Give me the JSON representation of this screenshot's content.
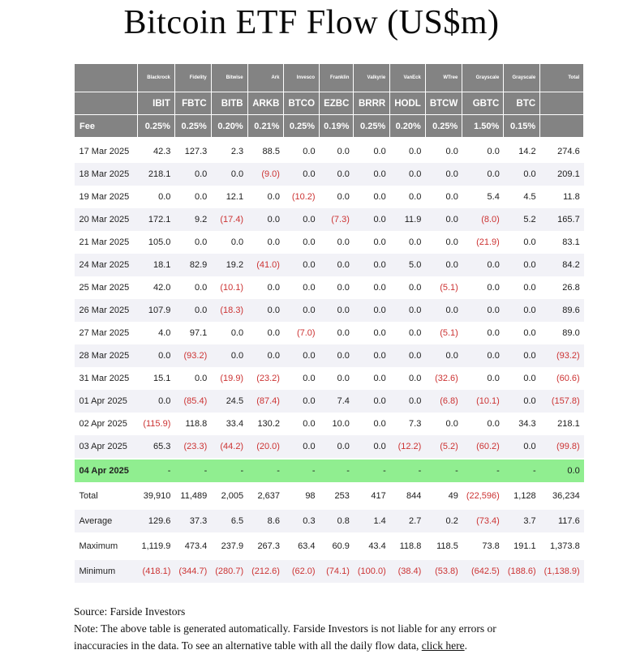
{
  "chart_data": {
    "type": "table",
    "title": "Bitcoin ETF Flow (US$m)",
    "total_label": "Total",
    "fee_label": "Fee",
    "issuers": [
      "Blackrock",
      "Fidelity",
      "Bitwise",
      "Ark",
      "Invesco",
      "Franklin",
      "Valkyrie",
      "VanEck",
      "WTree",
      "Grayscale",
      "Grayscale"
    ],
    "tickers": [
      "IBIT",
      "FBTC",
      "BITB",
      "ARKB",
      "BTCO",
      "EZBC",
      "BRRR",
      "HODL",
      "BTCW",
      "GBTC",
      "BTC"
    ],
    "fees": [
      "0.25%",
      "0.25%",
      "0.20%",
      "0.21%",
      "0.25%",
      "0.19%",
      "0.25%",
      "0.20%",
      "0.25%",
      "1.50%",
      "0.15%"
    ],
    "rows": [
      {
        "date": "17 Mar 2025",
        "values": [
          "42.3",
          "127.3",
          "2.3",
          "88.5",
          "0.0",
          "0.0",
          "0.0",
          "0.0",
          "0.0",
          "0.0",
          "14.2"
        ],
        "total": "274.6"
      },
      {
        "date": "18 Mar 2025",
        "values": [
          "218.1",
          "0.0",
          "0.0",
          "(9.0)",
          "0.0",
          "0.0",
          "0.0",
          "0.0",
          "0.0",
          "0.0",
          "0.0"
        ],
        "total": "209.1"
      },
      {
        "date": "19 Mar 2025",
        "values": [
          "0.0",
          "0.0",
          "12.1",
          "0.0",
          "(10.2)",
          "0.0",
          "0.0",
          "0.0",
          "0.0",
          "5.4",
          "4.5"
        ],
        "total": "11.8"
      },
      {
        "date": "20 Mar 2025",
        "values": [
          "172.1",
          "9.2",
          "(17.4)",
          "0.0",
          "0.0",
          "(7.3)",
          "0.0",
          "11.9",
          "0.0",
          "(8.0)",
          "5.2"
        ],
        "total": "165.7"
      },
      {
        "date": "21 Mar 2025",
        "values": [
          "105.0",
          "0.0",
          "0.0",
          "0.0",
          "0.0",
          "0.0",
          "0.0",
          "0.0",
          "0.0",
          "(21.9)",
          "0.0"
        ],
        "total": "83.1"
      },
      {
        "date": "24 Mar 2025",
        "values": [
          "18.1",
          "82.9",
          "19.2",
          "(41.0)",
          "0.0",
          "0.0",
          "0.0",
          "5.0",
          "0.0",
          "0.0",
          "0.0"
        ],
        "total": "84.2"
      },
      {
        "date": "25 Mar 2025",
        "values": [
          "42.0",
          "0.0",
          "(10.1)",
          "0.0",
          "0.0",
          "0.0",
          "0.0",
          "0.0",
          "(5.1)",
          "0.0",
          "0.0"
        ],
        "total": "26.8"
      },
      {
        "date": "26 Mar 2025",
        "values": [
          "107.9",
          "0.0",
          "(18.3)",
          "0.0",
          "0.0",
          "0.0",
          "0.0",
          "0.0",
          "0.0",
          "0.0",
          "0.0"
        ],
        "total": "89.6"
      },
      {
        "date": "27 Mar 2025",
        "values": [
          "4.0",
          "97.1",
          "0.0",
          "0.0",
          "(7.0)",
          "0.0",
          "0.0",
          "0.0",
          "(5.1)",
          "0.0",
          "0.0"
        ],
        "total": "89.0"
      },
      {
        "date": "28 Mar 2025",
        "values": [
          "0.0",
          "(93.2)",
          "0.0",
          "0.0",
          "0.0",
          "0.0",
          "0.0",
          "0.0",
          "0.0",
          "0.0",
          "0.0"
        ],
        "total": "(93.2)"
      },
      {
        "date": "31 Mar 2025",
        "values": [
          "15.1",
          "0.0",
          "(19.9)",
          "(23.2)",
          "0.0",
          "0.0",
          "0.0",
          "0.0",
          "(32.6)",
          "0.0",
          "0.0"
        ],
        "total": "(60.6)"
      },
      {
        "date": "01 Apr 2025",
        "values": [
          "0.0",
          "(85.4)",
          "24.5",
          "(87.4)",
          "0.0",
          "7.4",
          "0.0",
          "0.0",
          "(6.8)",
          "(10.1)",
          "0.0"
        ],
        "total": "(157.8)"
      },
      {
        "date": "02 Apr 2025",
        "values": [
          "(115.9)",
          "118.8",
          "33.4",
          "130.2",
          "0.0",
          "10.0",
          "0.0",
          "7.3",
          "0.0",
          "0.0",
          "34.3"
        ],
        "total": "218.1"
      },
      {
        "date": "03 Apr 2025",
        "values": [
          "65.3",
          "(23.3)",
          "(44.2)",
          "(20.0)",
          "0.0",
          "0.0",
          "0.0",
          "(12.2)",
          "(5.2)",
          "(60.2)",
          "0.0"
        ],
        "total": "(99.8)"
      },
      {
        "date": "04 Apr 2025",
        "values": [
          "-",
          "-",
          "-",
          "-",
          "-",
          "-",
          "-",
          "-",
          "-",
          "-",
          "-"
        ],
        "total": "0.0",
        "highlight": true
      }
    ],
    "summary_rows": [
      {
        "label": "Total",
        "values": [
          "39,910",
          "11,489",
          "2,005",
          "2,637",
          "98",
          "253",
          "417",
          "844",
          "49",
          "(22,596)",
          "1,128"
        ],
        "total": "36,234"
      },
      {
        "label": "Average",
        "values": [
          "129.6",
          "37.3",
          "6.5",
          "8.6",
          "0.3",
          "0.8",
          "1.4",
          "2.7",
          "0.2",
          "(73.4)",
          "3.7"
        ],
        "total": "117.6"
      },
      {
        "label": "Maximum",
        "values": [
          "1,119.9",
          "473.4",
          "237.9",
          "267.3",
          "63.4",
          "60.9",
          "43.4",
          "118.8",
          "118.5",
          "73.8",
          "191.1"
        ],
        "total": "1,373.8"
      },
      {
        "label": "Minimum",
        "values": [
          "(418.1)",
          "(344.7)",
          "(280.7)",
          "(212.6)",
          "(62.0)",
          "(74.1)",
          "(100.0)",
          "(38.4)",
          "(53.8)",
          "(642.5)",
          "(188.6)"
        ],
        "total": "(1,138.9)"
      }
    ],
    "colors": {
      "header_bg": "#838383",
      "stripe": "#f2f2f7",
      "highlight_green": "#90ee90",
      "negative_red": "#cc3333"
    }
  },
  "footer": {
    "source": "Source: Farside Investors",
    "note_prefix": "Note: The above table is generated automatically. Farside Investors is not liable for any errors or inaccuracies in the data. To see an alternative table with all the daily flow data, ",
    "link_text": "click here",
    "note_suffix": "."
  }
}
